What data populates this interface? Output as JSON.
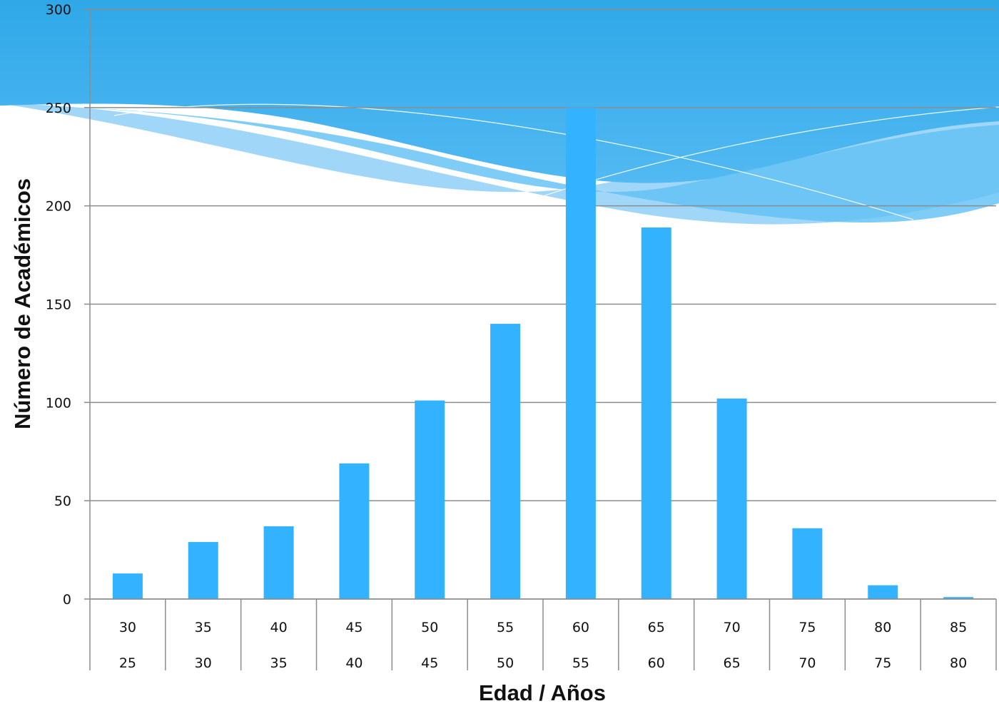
{
  "colors": {
    "bar": "#33b3ff",
    "grid": "#8c8c8c",
    "wave_dark": "#2fa8e8",
    "wave_light": "#8fd0f7",
    "background": "#ffffff"
  },
  "chart_data": {
    "type": "bar",
    "title": "",
    "xlabel": "Edad / Años",
    "ylabel": "Número de Académicos",
    "categories": [
      {
        "upper": "30",
        "lower": "25"
      },
      {
        "upper": "35",
        "lower": "30"
      },
      {
        "upper": "40",
        "lower": "35"
      },
      {
        "upper": "45",
        "lower": "40"
      },
      {
        "upper": "50",
        "lower": "45"
      },
      {
        "upper": "55",
        "lower": "50"
      },
      {
        "upper": "60",
        "lower": "55"
      },
      {
        "upper": "65",
        "lower": "60"
      },
      {
        "upper": "70",
        "lower": "65"
      },
      {
        "upper": "75",
        "lower": "70"
      },
      {
        "upper": "80",
        "lower": "75"
      },
      {
        "upper": "85",
        "lower": "80"
      }
    ],
    "values": [
      13,
      29,
      37,
      69,
      101,
      140,
      250,
      189,
      102,
      36,
      7,
      1
    ],
    "ylim": [
      0,
      300
    ],
    "yticks": [
      "0",
      "50",
      "100",
      "150",
      "200",
      "250",
      "300"
    ],
    "grid": true,
    "legend": "none"
  }
}
